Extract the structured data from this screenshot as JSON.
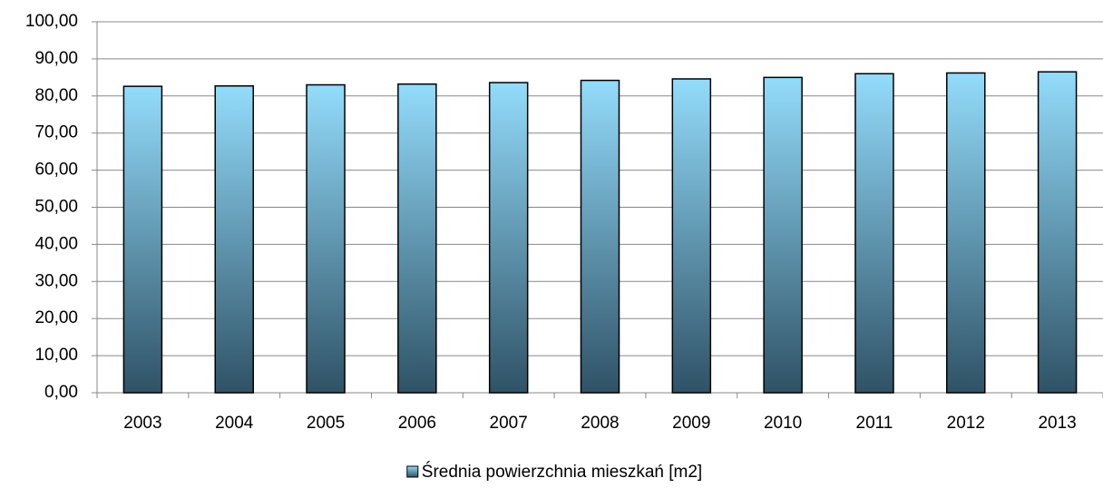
{
  "chart_data": {
    "type": "bar",
    "categories": [
      "2003",
      "2004",
      "2005",
      "2006",
      "2007",
      "2008",
      "2009",
      "2010",
      "2011",
      "2012",
      "2013"
    ],
    "series": [
      {
        "name": "Średnia powierzchnia mieszkań  [m2]",
        "color": [
          "#93dcfb",
          "#2f5266"
        ],
        "values": [
          82.6,
          82.7,
          83.0,
          83.2,
          83.6,
          84.2,
          84.6,
          85.0,
          86.0,
          86.2,
          86.5
        ]
      }
    ],
    "ylim": [
      0,
      100
    ],
    "yticks": [
      {
        "value": 0,
        "label": "0,00"
      },
      {
        "value": 10,
        "label": "10,00"
      },
      {
        "value": 20,
        "label": "20,00"
      },
      {
        "value": 30,
        "label": "30,00"
      },
      {
        "value": 40,
        "label": "40,00"
      },
      {
        "value": 50,
        "label": "50,00"
      },
      {
        "value": 60,
        "label": "60,00"
      },
      {
        "value": 70,
        "label": "70,00"
      },
      {
        "value": 80,
        "label": "80,00"
      },
      {
        "value": 90,
        "label": "90,00"
      },
      {
        "value": 100,
        "label": "100,00"
      }
    ],
    "grid": true,
    "legend": "bottom"
  }
}
